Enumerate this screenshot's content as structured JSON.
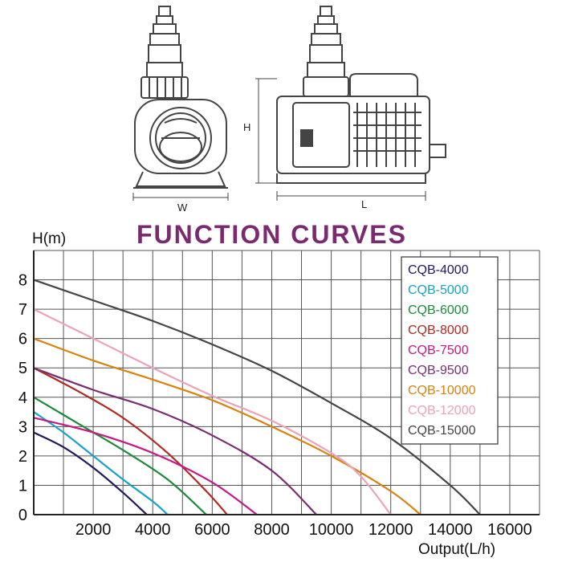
{
  "figure": {
    "dimension_labels": {
      "width": "W",
      "height": "H",
      "length": "L"
    }
  },
  "colors": {
    "title": "#7a2a6e",
    "grid": "#555555",
    "axis": "#222222",
    "drawing": "#444444"
  },
  "chart_data": {
    "type": "line",
    "title": "FUNCTION CURVES",
    "xlabel": "Output(L/h)",
    "ylabel": "H(m)",
    "xlim": [
      0,
      17000
    ],
    "ylim": [
      0,
      9
    ],
    "x_tick_values": [
      2000,
      4000,
      6000,
      8000,
      10000,
      12000,
      14000,
      16000
    ],
    "x_tick_labels": [
      "2000",
      "4000",
      "6000",
      "8000",
      "10000",
      "12000",
      "14000",
      "16000"
    ],
    "y_tick_values": [
      0,
      1,
      2,
      3,
      4,
      5,
      6,
      7,
      8
    ],
    "y_tick_labels": [
      "0",
      "1",
      "2",
      "3",
      "4",
      "5",
      "6",
      "7",
      "8"
    ],
    "grid": true,
    "legend_position": "top-right",
    "series": [
      {
        "name": "CQB-4000",
        "color": "#1d1b5e",
        "points": [
          [
            0,
            2.8
          ],
          [
            1000,
            2.3
          ],
          [
            2000,
            1.6
          ],
          [
            3000,
            0.75
          ],
          [
            3800,
            0
          ]
        ]
      },
      {
        "name": "CQB-5000",
        "color": "#17a3c9",
        "points": [
          [
            0,
            3.5
          ],
          [
            1000,
            2.8
          ],
          [
            2000,
            2.0
          ],
          [
            3000,
            1.2
          ],
          [
            4000,
            0.45
          ],
          [
            4500,
            0
          ]
        ]
      },
      {
        "name": "CQB-6000",
        "color": "#1c8a3a",
        "points": [
          [
            0,
            4.0
          ],
          [
            1500,
            3.1
          ],
          [
            3000,
            2.2
          ],
          [
            4500,
            1.2
          ],
          [
            5800,
            0
          ]
        ]
      },
      {
        "name": "CQB-8000",
        "color": "#b02a26",
        "points": [
          [
            0,
            5.0
          ],
          [
            1500,
            4.2
          ],
          [
            3000,
            3.3
          ],
          [
            4500,
            2.1
          ],
          [
            5800,
            0.8
          ],
          [
            6500,
            0
          ]
        ]
      },
      {
        "name": "CQB-7500",
        "color": "#c41a84",
        "points": [
          [
            0,
            3.3
          ],
          [
            2000,
            2.8
          ],
          [
            4000,
            2.1
          ],
          [
            6000,
            1.1
          ],
          [
            7500,
            0
          ]
        ]
      },
      {
        "name": "CQB-9500",
        "color": "#7a2e72",
        "points": [
          [
            0,
            5.0
          ],
          [
            2000,
            4.25
          ],
          [
            4000,
            3.6
          ],
          [
            6000,
            2.7
          ],
          [
            8000,
            1.5
          ],
          [
            9500,
            0
          ]
        ]
      },
      {
        "name": "CQB-10000",
        "color": "#d9820e",
        "points": [
          [
            0,
            6.0
          ],
          [
            2000,
            5.25
          ],
          [
            4000,
            4.6
          ],
          [
            6000,
            3.9
          ],
          [
            8000,
            3.0
          ],
          [
            10000,
            2.0
          ],
          [
            12000,
            0.8
          ],
          [
            13000,
            0
          ]
        ]
      },
      {
        "name": "CQB-12000",
        "color": "#eba3b8",
        "points": [
          [
            0,
            7.0
          ],
          [
            2000,
            6.0
          ],
          [
            4000,
            5.0
          ],
          [
            6000,
            4.05
          ],
          [
            8000,
            3.2
          ],
          [
            10000,
            2.1
          ],
          [
            11000,
            1.3
          ],
          [
            12000,
            0
          ]
        ]
      },
      {
        "name": "CQB-15000",
        "color": "#454545",
        "points": [
          [
            0,
            8.0
          ],
          [
            2000,
            7.3
          ],
          [
            4000,
            6.6
          ],
          [
            6000,
            5.8
          ],
          [
            8000,
            4.9
          ],
          [
            10000,
            3.8
          ],
          [
            12000,
            2.6
          ],
          [
            14000,
            1.0
          ],
          [
            15000,
            0
          ]
        ]
      }
    ]
  }
}
